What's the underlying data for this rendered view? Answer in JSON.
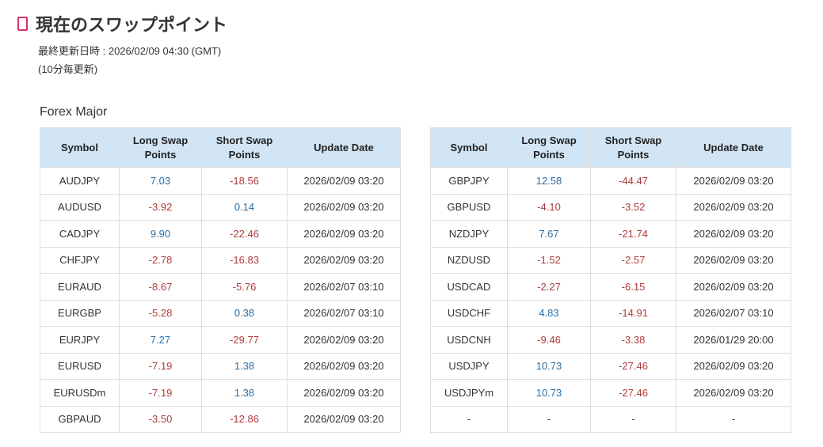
{
  "header": {
    "title": "現在のスワップポイント",
    "updated": "最終更新日時 : 2026/02/09 04:30 (GMT)",
    "interval": "(10分毎更新)"
  },
  "section": "Forex Major",
  "tables": [
    {
      "columns": [
        "Symbol",
        "Long Swap Points",
        "Short Swap Points",
        "Update Date"
      ],
      "rows": [
        [
          "AUDJPY",
          "7.03",
          "-18.56",
          "2026/02/09 03:20"
        ],
        [
          "AUDUSD",
          "-3.92",
          "0.14",
          "2026/02/09 03:20"
        ],
        [
          "CADJPY",
          "9.90",
          "-22.46",
          "2026/02/09 03:20"
        ],
        [
          "CHFJPY",
          "-2.78",
          "-16.83",
          "2026/02/09 03:20"
        ],
        [
          "EURAUD",
          "-8.67",
          "-5.76",
          "2026/02/07 03:10"
        ],
        [
          "EURGBP",
          "-5.28",
          "0.38",
          "2026/02/07 03:10"
        ],
        [
          "EURJPY",
          "7.27",
          "-29.77",
          "2026/02/09 03:20"
        ],
        [
          "EURUSD",
          "-7.19",
          "1.38",
          "2026/02/09 03:20"
        ],
        [
          "EURUSDm",
          "-7.19",
          "1.38",
          "2026/02/09 03:20"
        ],
        [
          "GBPAUD",
          "-3.50",
          "-12.86",
          "2026/02/09 03:20"
        ]
      ]
    },
    {
      "columns": [
        "Symbol",
        "Long Swap Points",
        "Short Swap Points",
        "Update Date"
      ],
      "rows": [
        [
          "GBPJPY",
          "12.58",
          "-44.47",
          "2026/02/09 03:20"
        ],
        [
          "GBPUSD",
          "-4.10",
          "-3.52",
          "2026/02/09 03:20"
        ],
        [
          "NZDJPY",
          "7.67",
          "-21.74",
          "2026/02/09 03:20"
        ],
        [
          "NZDUSD",
          "-1.52",
          "-2.57",
          "2026/02/09 03:20"
        ],
        [
          "USDCAD",
          "-2.27",
          "-6.15",
          "2026/02/09 03:20"
        ],
        [
          "USDCHF",
          "4.83",
          "-14.91",
          "2026/02/07 03:10"
        ],
        [
          "USDCNH",
          "-9.46",
          "-3.38",
          "2026/01/29 20:00"
        ],
        [
          "USDJPY",
          "10.73",
          "-27.46",
          "2026/02/09 03:20"
        ],
        [
          "USDJPYm",
          "10.73",
          "-27.46",
          "2026/02/09 03:20"
        ],
        [
          "-",
          "-",
          "-",
          "-"
        ]
      ]
    }
  ]
}
